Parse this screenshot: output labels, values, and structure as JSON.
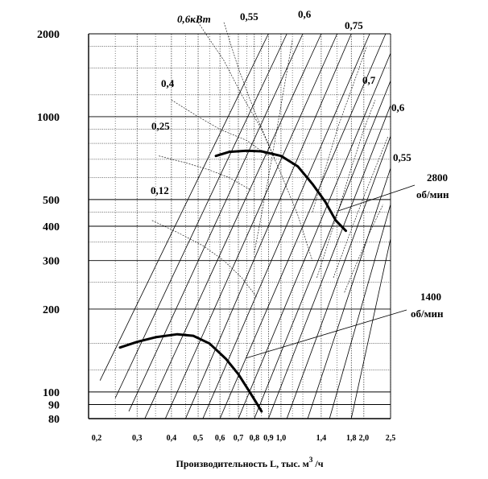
{
  "chart_data": {
    "type": "line",
    "title": "",
    "xlabel": "Производительность L, тыс. м",
    "xlabel_sup": "3",
    "xlabel_tail": " /ч",
    "x_scale": "log",
    "y_scale": "log",
    "xlim": [
      0.2,
      2.5
    ],
    "ylim": [
      80,
      2000
    ],
    "grid": true,
    "x_ticks": [
      {
        "value": 0.2,
        "label": "0,2"
      },
      {
        "value": 0.3,
        "label": "0,3"
      },
      {
        "value": 0.4,
        "label": "0,4"
      },
      {
        "value": 0.5,
        "label": "0,5"
      },
      {
        "value": 0.6,
        "label": "0,6"
      },
      {
        "value": 0.7,
        "label": "0,7"
      },
      {
        "value": 0.8,
        "label": "0,8"
      },
      {
        "value": 0.9,
        "label": "0,9"
      },
      {
        "value": 1.0,
        "label": "1,0"
      },
      {
        "value": 1.4,
        "label": "1,4"
      },
      {
        "value": 1.8,
        "label": "1,8"
      },
      {
        "value": 2.0,
        "label": "2,0"
      },
      {
        "value": 2.5,
        "label": "2,5"
      }
    ],
    "y_ticks": [
      {
        "value": 80,
        "label": "80"
      },
      {
        "value": 90,
        "label": "90"
      },
      {
        "value": 100,
        "label": "100"
      },
      {
        "value": 200,
        "label": "200"
      },
      {
        "value": 300,
        "label": "300"
      },
      {
        "value": 400,
        "label": "400"
      },
      {
        "value": 500,
        "label": "500"
      },
      {
        "value": 1000,
        "label": "1000"
      },
      {
        "value": 2000,
        "label": "2000"
      }
    ],
    "y_grid_extra": [
      120,
      150,
      250,
      350,
      450,
      600,
      700,
      800,
      900,
      1200,
      1500,
      1800
    ],
    "x_grid_extra": [
      0.25,
      0.35,
      0.45,
      0.55,
      0.65,
      0.75,
      0.85,
      1.1,
      1.2,
      1.6
    ],
    "series": [
      {
        "name": "2800 об/мин",
        "points": [
          [
            0.58,
            720
          ],
          [
            0.65,
            745
          ],
          [
            0.75,
            752
          ],
          [
            0.85,
            748
          ],
          [
            1.0,
            720
          ],
          [
            1.15,
            660
          ],
          [
            1.3,
            570
          ],
          [
            1.45,
            490
          ],
          [
            1.58,
            420
          ],
          [
            1.72,
            385
          ]
        ]
      },
      {
        "name": "1400 об/мин",
        "points": [
          [
            0.26,
            145
          ],
          [
            0.3,
            152
          ],
          [
            0.35,
            158
          ],
          [
            0.42,
            162
          ],
          [
            0.48,
            160
          ],
          [
            0.55,
            150
          ],
          [
            0.63,
            132
          ],
          [
            0.7,
            116
          ],
          [
            0.76,
            102
          ],
          [
            0.81,
            92
          ],
          [
            0.85,
            85
          ]
        ]
      }
    ],
    "power_lines": [
      {
        "label": "0,6кВт",
        "points": [
          [
            0.5,
            2200
          ],
          [
            0.62,
            1600
          ],
          [
            0.72,
            1200
          ],
          [
            0.85,
            900
          ],
          [
            1.0,
            620
          ],
          [
            1.15,
            440
          ],
          [
            1.3,
            300
          ]
        ]
      },
      {
        "label": "0,55",
        "points": [
          [
            0.62,
            2200
          ],
          [
            0.7,
            1500
          ],
          [
            0.8,
            1050
          ],
          [
            0.95,
            700
          ]
        ]
      },
      {
        "label": "0,4",
        "points": [
          [
            0.4,
            1150
          ],
          [
            0.5,
            1000
          ],
          [
            0.6,
            900
          ],
          [
            0.75,
            820
          ],
          [
            0.9,
            720
          ]
        ]
      },
      {
        "label": "0,25",
        "points": [
          [
            0.36,
            720
          ],
          [
            0.45,
            680
          ],
          [
            0.55,
            640
          ],
          [
            0.65,
            600
          ],
          [
            0.78,
            540
          ]
        ]
      },
      {
        "label": "0,12",
        "points": [
          [
            0.34,
            420
          ],
          [
            0.42,
            380
          ],
          [
            0.52,
            340
          ],
          [
            0.62,
            300
          ],
          [
            0.72,
            260
          ],
          [
            0.82,
            220
          ]
        ]
      }
    ],
    "efficiency_lines": [
      {
        "label": "0,6",
        "points": [
          [
            0.8,
            320
          ],
          [
            0.9,
            600
          ],
          [
            1.0,
            1100
          ],
          [
            1.1,
            1900
          ]
        ]
      },
      {
        "label": "0,75",
        "points": [
          [
            1.3,
            450
          ],
          [
            1.45,
            650
          ],
          [
            1.6,
            900
          ],
          [
            1.8,
            1250
          ],
          [
            2.05,
            1800
          ]
        ]
      },
      {
        "label": "0,7",
        "points": [
          [
            1.35,
            260
          ],
          [
            1.5,
            360
          ],
          [
            1.65,
            490
          ],
          [
            1.8,
            650
          ],
          [
            2.0,
            900
          ],
          [
            2.2,
            1150
          ]
        ]
      },
      {
        "label": "0,6",
        "points": [
          [
            1.55,
            260
          ],
          [
            1.75,
            360
          ],
          [
            1.95,
            480
          ],
          [
            2.2,
            650
          ],
          [
            2.45,
            850
          ]
        ]
      },
      {
        "label": "0,55",
        "points": [
          [
            1.7,
            230
          ],
          [
            1.9,
            300
          ],
          [
            2.1,
            380
          ],
          [
            2.35,
            480
          ]
        ]
      }
    ],
    "network_lines": [
      {
        "points": [
          [
            0.22,
            110
          ],
          [
            0.9,
            2000
          ]
        ]
      },
      {
        "points": [
          [
            0.25,
            95
          ],
          [
            1.05,
            2000
          ]
        ]
      },
      {
        "points": [
          [
            0.28,
            85
          ],
          [
            1.2,
            2000
          ]
        ]
      },
      {
        "points": [
          [
            0.32,
            80
          ],
          [
            1.4,
            2000
          ]
        ]
      },
      {
        "points": [
          [
            0.38,
            80
          ],
          [
            1.6,
            2000
          ]
        ]
      },
      {
        "points": [
          [
            0.45,
            80
          ],
          [
            1.8,
            2000
          ]
        ]
      },
      {
        "points": [
          [
            0.52,
            80
          ],
          [
            2.1,
            2000
          ]
        ]
      },
      {
        "points": [
          [
            0.6,
            80
          ],
          [
            2.4,
            2000
          ]
        ]
      },
      {
        "points": [
          [
            0.7,
            80
          ],
          [
            2.5,
            1700
          ]
        ]
      },
      {
        "points": [
          [
            0.8,
            80
          ],
          [
            2.5,
            1350
          ]
        ]
      },
      {
        "points": [
          [
            0.9,
            80
          ],
          [
            2.5,
            1100
          ]
        ]
      },
      {
        "points": [
          [
            1.05,
            80
          ],
          [
            2.5,
            850
          ]
        ]
      },
      {
        "points": [
          [
            1.25,
            80
          ],
          [
            2.5,
            650
          ]
        ]
      },
      {
        "points": [
          [
            1.5,
            80
          ],
          [
            2.5,
            480
          ]
        ]
      },
      {
        "points": [
          [
            1.8,
            80
          ],
          [
            2.5,
            360
          ]
        ]
      }
    ],
    "annotations": [
      {
        "text": "0,6кВт",
        "italic": true
      },
      {
        "text": "0,55"
      },
      {
        "text": "0,6"
      },
      {
        "text": "0,75"
      },
      {
        "text": "0,4"
      },
      {
        "text": "0,7"
      },
      {
        "text": "0,6"
      },
      {
        "text": "0,25"
      },
      {
        "text": "0,55"
      },
      {
        "text": "0,12"
      },
      {
        "text": "2800"
      },
      {
        "text": "об/мин"
      },
      {
        "text": "1400"
      },
      {
        "text": "об/мин"
      }
    ]
  }
}
